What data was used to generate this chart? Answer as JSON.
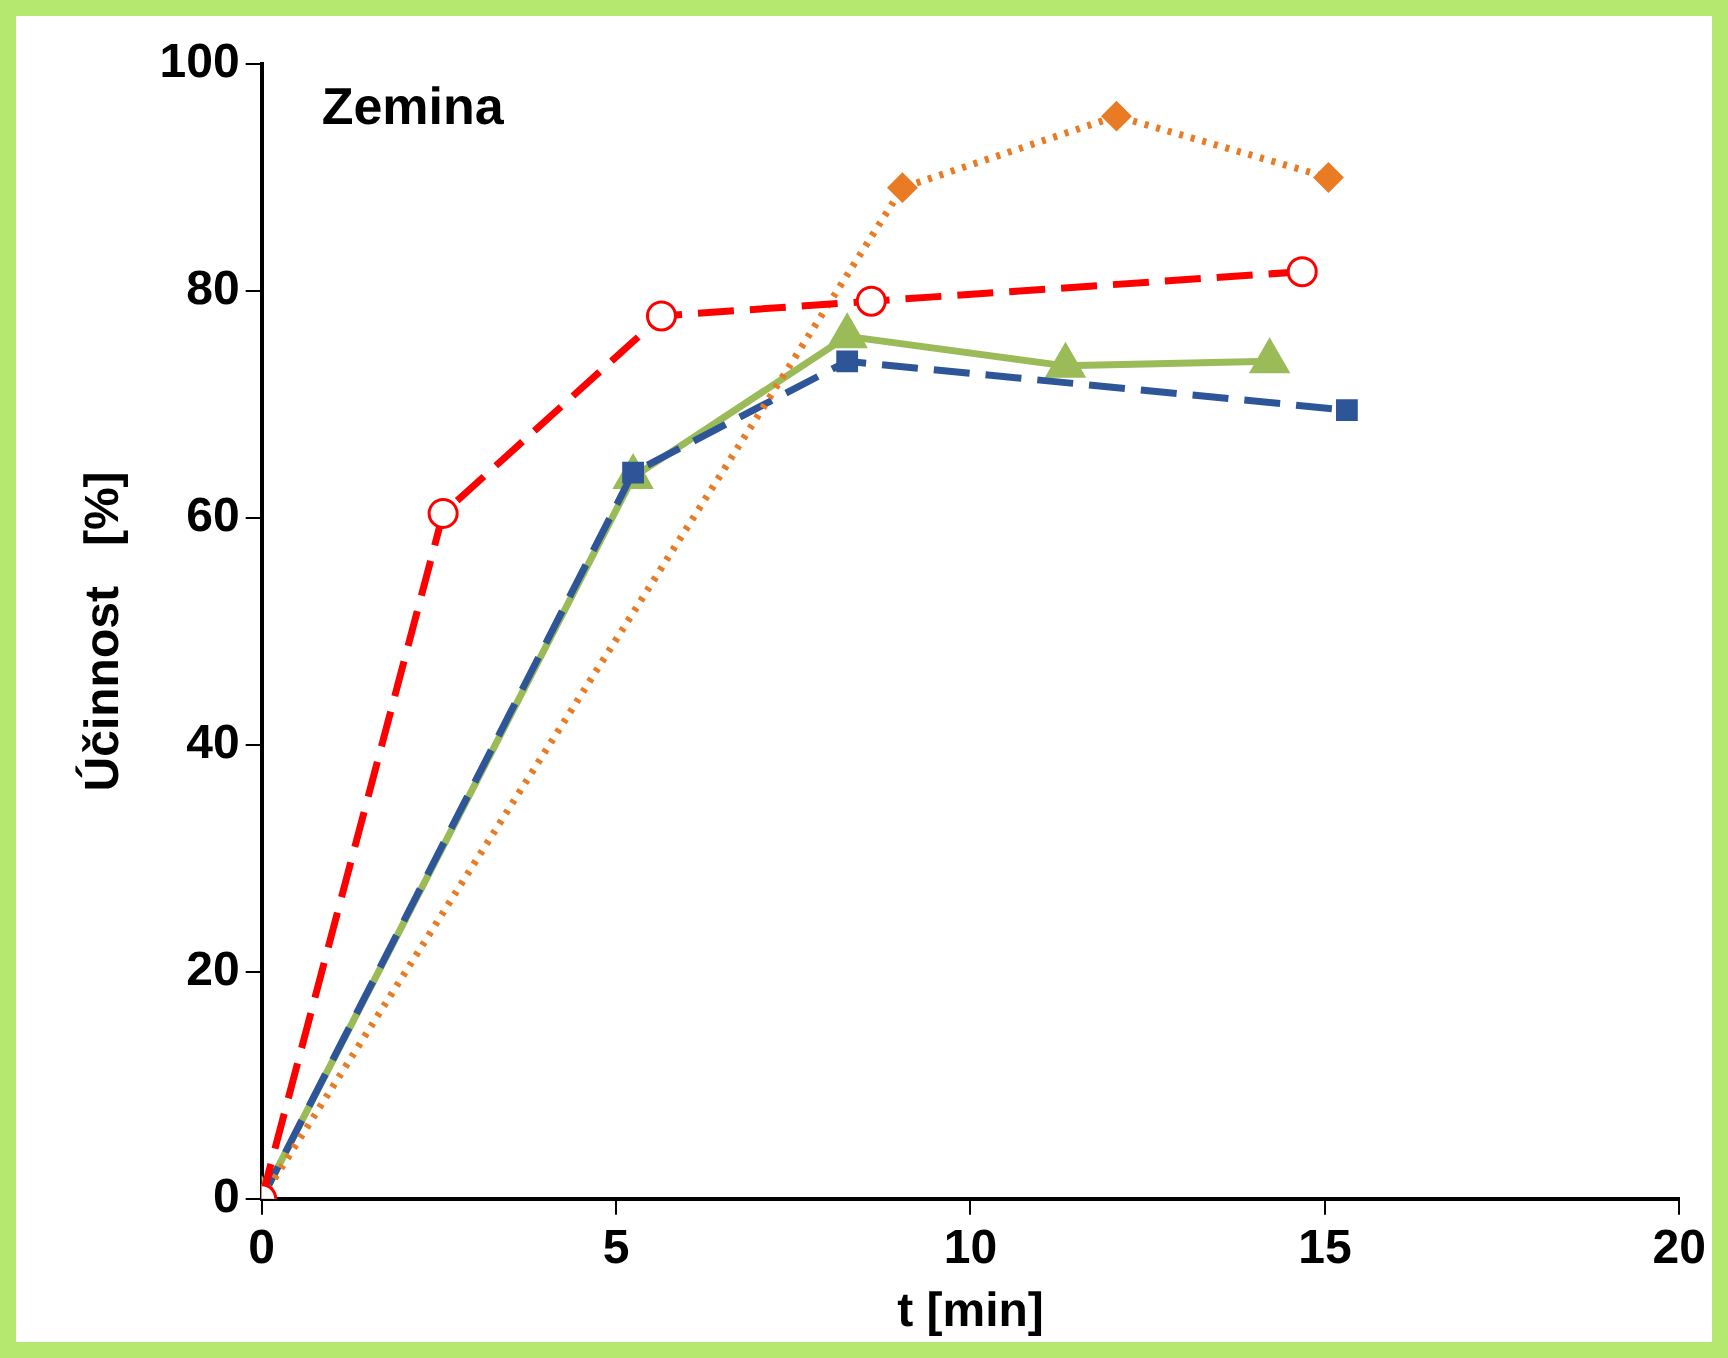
{
  "chart_data": {
    "type": "line",
    "title": "Zemina",
    "xlabel": "t [min]",
    "ylabel": "Účinnost   [%]",
    "xlim": [
      0,
      20
    ],
    "xticks": [
      0,
      5,
      10,
      15,
      20
    ],
    "ylim": [
      0,
      100
    ],
    "yticks": [
      0,
      20,
      40,
      60,
      80,
      100
    ],
    "grid": false,
    "legend": false,
    "series": [
      {
        "color": "#ff0000",
        "marker": "circle",
        "line_style": "dashed",
        "x": [
          0,
          2.56,
          5.64,
          8.6,
          14.68
        ],
        "values": [
          0,
          60.4,
          77.8,
          79.1,
          81.7
        ]
      },
      {
        "color": "#e87b24",
        "marker": "diamond",
        "line_style": "dotted",
        "x": [
          0,
          9.04,
          12.06,
          15.05
        ],
        "values": [
          0,
          89.1,
          95.4,
          90.0
        ]
      },
      {
        "color": "#2e5597",
        "marker": "square",
        "line_style": "dashed",
        "x": [
          0,
          5.24,
          8.26,
          15.31
        ],
        "values": [
          0,
          64.0,
          73.8,
          69.5
        ]
      },
      {
        "color": "#9bbb59",
        "marker": "triangle",
        "line_style": "solid",
        "x": [
          0,
          5.24,
          8.26,
          11.34,
          14.22
        ],
        "values": [
          0,
          63.6,
          76.0,
          73.4,
          73.8
        ]
      }
    ]
  }
}
